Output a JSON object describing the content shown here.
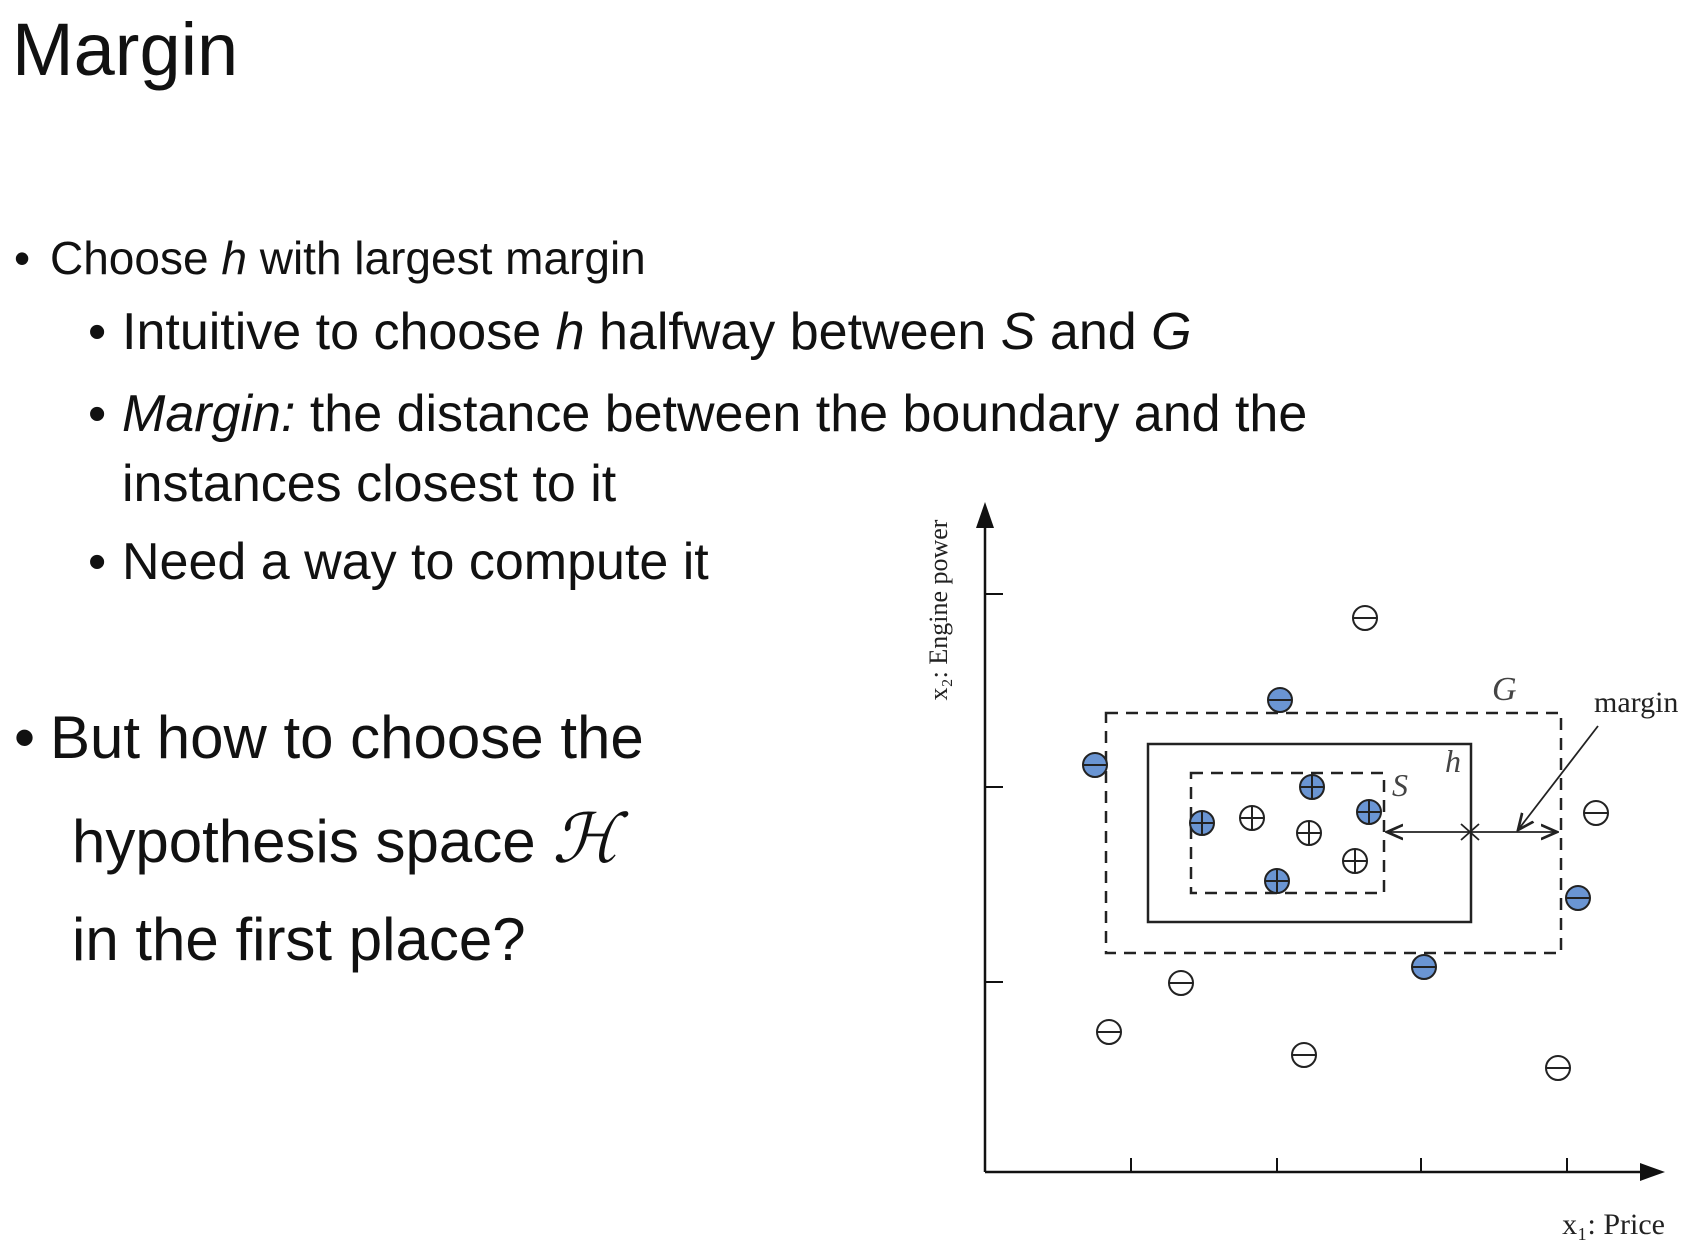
{
  "title": "Margin",
  "bullet1": {
    "pre": "Choose ",
    "var": "h",
    "post": " with largest margin"
  },
  "sub1": {
    "p1": "Intuitive to choose ",
    "v1": "h",
    "p2": " halfway between ",
    "v2": "S",
    "p3": " and ",
    "v3": "G"
  },
  "sub2": {
    "term": "Margin:",
    "line1": " the distance between the boundary and the",
    "line2": "instances closest to it"
  },
  "sub3": {
    "text": "Need a way to compute it"
  },
  "bullet2": {
    "line1": "But how to choose the",
    "line2": "hypothesis space ",
    "symbol": "ℋ",
    "line3": "in the first place?"
  },
  "figure": {
    "y_axis_label": "x₂: Engine power",
    "x_axis_label": "x₁: Price",
    "label_G": "G",
    "label_h": "h",
    "label_S": "S",
    "label_margin": "margin",
    "colors": {
      "positive_fill": "#6a95d3",
      "stroke": "#222222"
    },
    "symbols": {
      "positive": "⊕",
      "negative": "⊖"
    }
  }
}
